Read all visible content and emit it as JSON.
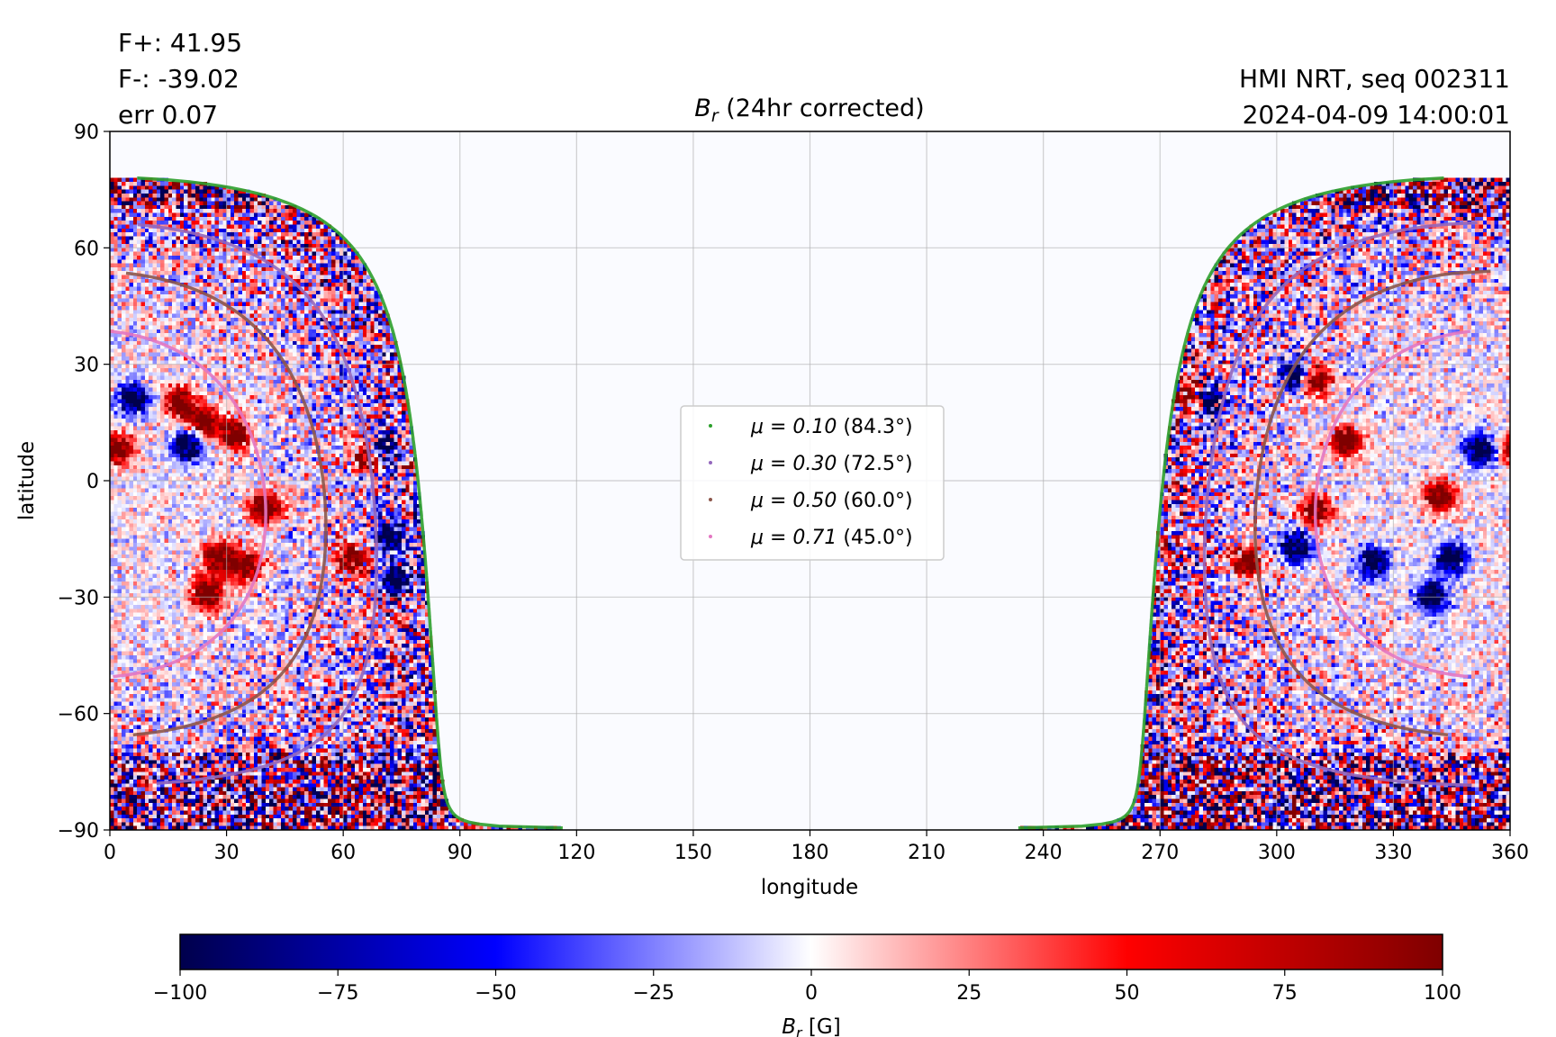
{
  "header": {
    "flux_pos": "F+: 41.95",
    "flux_neg": "F-: -39.02",
    "err": "err 0.07",
    "source": "HMI NRT, seq 002311",
    "timestamp": "2024-04-09 14:00:01"
  },
  "chart_data": {
    "type": "heatmap",
    "title_main": "B",
    "title_sub": "r",
    "title_rest": " (24hr corrected)",
    "xlabel": "longitude",
    "ylabel": "latitude",
    "xlim": [
      0,
      360
    ],
    "ylim": [
      -90,
      90
    ],
    "xticks": [
      0,
      30,
      60,
      90,
      120,
      150,
      180,
      210,
      240,
      270,
      300,
      330,
      360
    ],
    "yticks": [
      -90,
      -60,
      -30,
      0,
      30,
      60,
      90
    ],
    "grid": true,
    "observer_central_longitude": 355,
    "observer_latitude": -6,
    "legend_placement": "center",
    "mu_contours": [
      {
        "mu": 0.1,
        "label_math": "μ = 0.10",
        "label_angle": " (84.3°)",
        "color": "#2ca02c"
      },
      {
        "mu": 0.3,
        "label_math": "μ = 0.30",
        "label_angle": " (72.5°)",
        "color": "#9467bd"
      },
      {
        "mu": 0.5,
        "label_math": "μ = 0.50",
        "label_angle": " (60.0°)",
        "color": "#8c564b"
      },
      {
        "mu": 0.71,
        "label_math": "μ = 0.71",
        "label_angle": " (45.0°)",
        "color": "#e377c2"
      }
    ],
    "active_regions": [
      {
        "lon": 6,
        "lat": 21,
        "polarity": "negative"
      },
      {
        "lon": 18,
        "lat": 20,
        "polarity": "positive"
      },
      {
        "lon": 24,
        "lat": 15,
        "polarity": "positive"
      },
      {
        "lon": 32,
        "lat": 12,
        "polarity": "positive"
      },
      {
        "lon": 2,
        "lat": 8,
        "polarity": "positive"
      },
      {
        "lon": 20,
        "lat": 9,
        "polarity": "negative"
      },
      {
        "lon": 28,
        "lat": -20,
        "polarity": "positive"
      },
      {
        "lon": 25,
        "lat": -29,
        "polarity": "positive"
      },
      {
        "lon": 35,
        "lat": -22,
        "polarity": "positive"
      },
      {
        "lon": 40,
        "lat": -7,
        "polarity": "positive"
      },
      {
        "lon": 62,
        "lat": -20,
        "polarity": "positive"
      },
      {
        "lon": 67,
        "lat": 6,
        "polarity": "positive"
      },
      {
        "lon": 70,
        "lat": 8,
        "polarity": "negative"
      },
      {
        "lon": 72,
        "lat": -15,
        "polarity": "negative"
      },
      {
        "lon": 74,
        "lat": -25,
        "polarity": "negative"
      },
      {
        "lon": 277,
        "lat": 21,
        "polarity": "positive"
      },
      {
        "lon": 282,
        "lat": 20,
        "polarity": "negative"
      },
      {
        "lon": 305,
        "lat": 27,
        "polarity": "negative"
      },
      {
        "lon": 310,
        "lat": 26,
        "polarity": "positive"
      },
      {
        "lon": 318,
        "lat": 10,
        "polarity": "positive"
      },
      {
        "lon": 310,
        "lat": -8,
        "polarity": "positive"
      },
      {
        "lon": 305,
        "lat": -17,
        "polarity": "negative"
      },
      {
        "lon": 292,
        "lat": -21,
        "polarity": "positive"
      },
      {
        "lon": 325,
        "lat": -21,
        "polarity": "negative"
      },
      {
        "lon": 345,
        "lat": -20,
        "polarity": "negative"
      },
      {
        "lon": 340,
        "lat": -30,
        "polarity": "negative"
      },
      {
        "lon": 352,
        "lat": 8,
        "polarity": "negative"
      },
      {
        "lon": 342,
        "lat": -4,
        "polarity": "positive"
      }
    ]
  },
  "colorbar": {
    "min": -100,
    "max": 100,
    "ticks": [
      -100,
      -75,
      -50,
      -25,
      0,
      25,
      50,
      75,
      100
    ],
    "tick_labels": [
      "−100",
      "−75",
      "−50",
      "−25",
      "0",
      "25",
      "50",
      "75",
      "100"
    ],
    "label_main": "B",
    "label_sub": "r",
    "label_rest": " [G]",
    "colormap": "seismic",
    "stops": [
      "#00004c",
      "#0000ff",
      "#ffffff",
      "#ff0000",
      "#7f0000"
    ]
  }
}
